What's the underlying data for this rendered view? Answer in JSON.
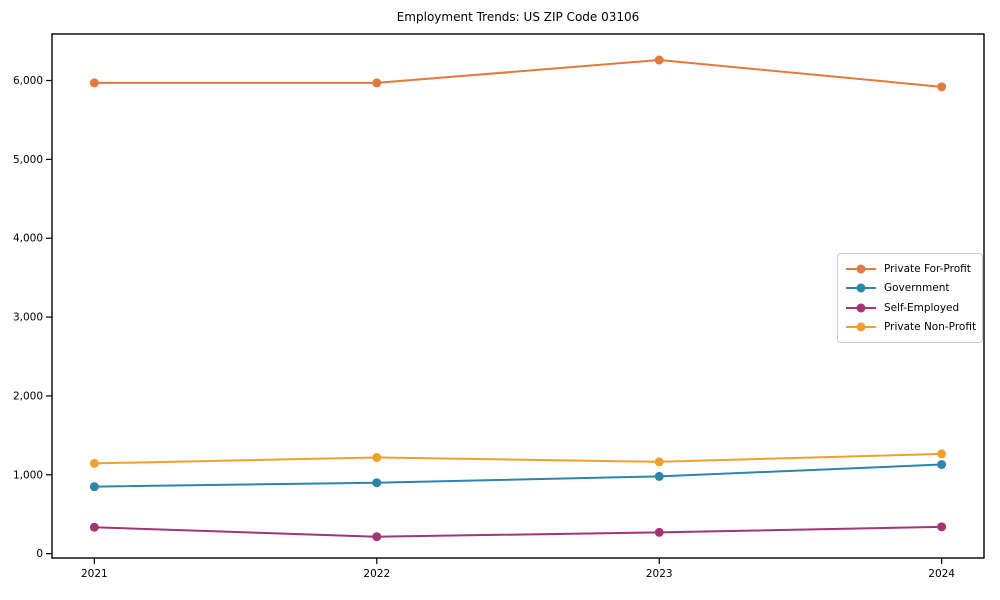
{
  "figure": {
    "background": "#ffffff",
    "spine_color": "#000000",
    "text_color": "#000000"
  },
  "chart_data": {
    "type": "line",
    "title": "Employment Trends: US ZIP Code 03106",
    "xlabel": "",
    "ylabel": "",
    "grid": false,
    "legend_position": "center-right",
    "categories": [
      "2021",
      "2022",
      "2023",
      "2024"
    ],
    "x": [
      2021,
      2022,
      2023,
      2024
    ],
    "series": [
      {
        "name": "Private For-Profit",
        "color": "#e2793d",
        "values": [
          5970,
          5970,
          6260,
          5920
        ]
      },
      {
        "name": "Government",
        "color": "#2d85a8",
        "values": [
          850,
          900,
          980,
          1130
        ]
      },
      {
        "name": "Self-Employed",
        "color": "#a23478",
        "values": [
          335,
          215,
          270,
          340
        ]
      },
      {
        "name": "Private Non-Profit",
        "color": "#f0a02e",
        "values": [
          1145,
          1220,
          1165,
          1265
        ]
      }
    ],
    "ylim": [
      -55,
      6590
    ],
    "xlim_index": [
      -0.15,
      3.15
    ],
    "yticks": [
      0,
      1000,
      2000,
      3000,
      4000,
      5000,
      6000
    ],
    "ytick_labels": [
      "0",
      "1,000",
      "2,000",
      "3,000",
      "4,000",
      "5,000",
      "6,000"
    ],
    "marker": "circle",
    "marker_radius": 4.5,
    "line_width": 2
  }
}
